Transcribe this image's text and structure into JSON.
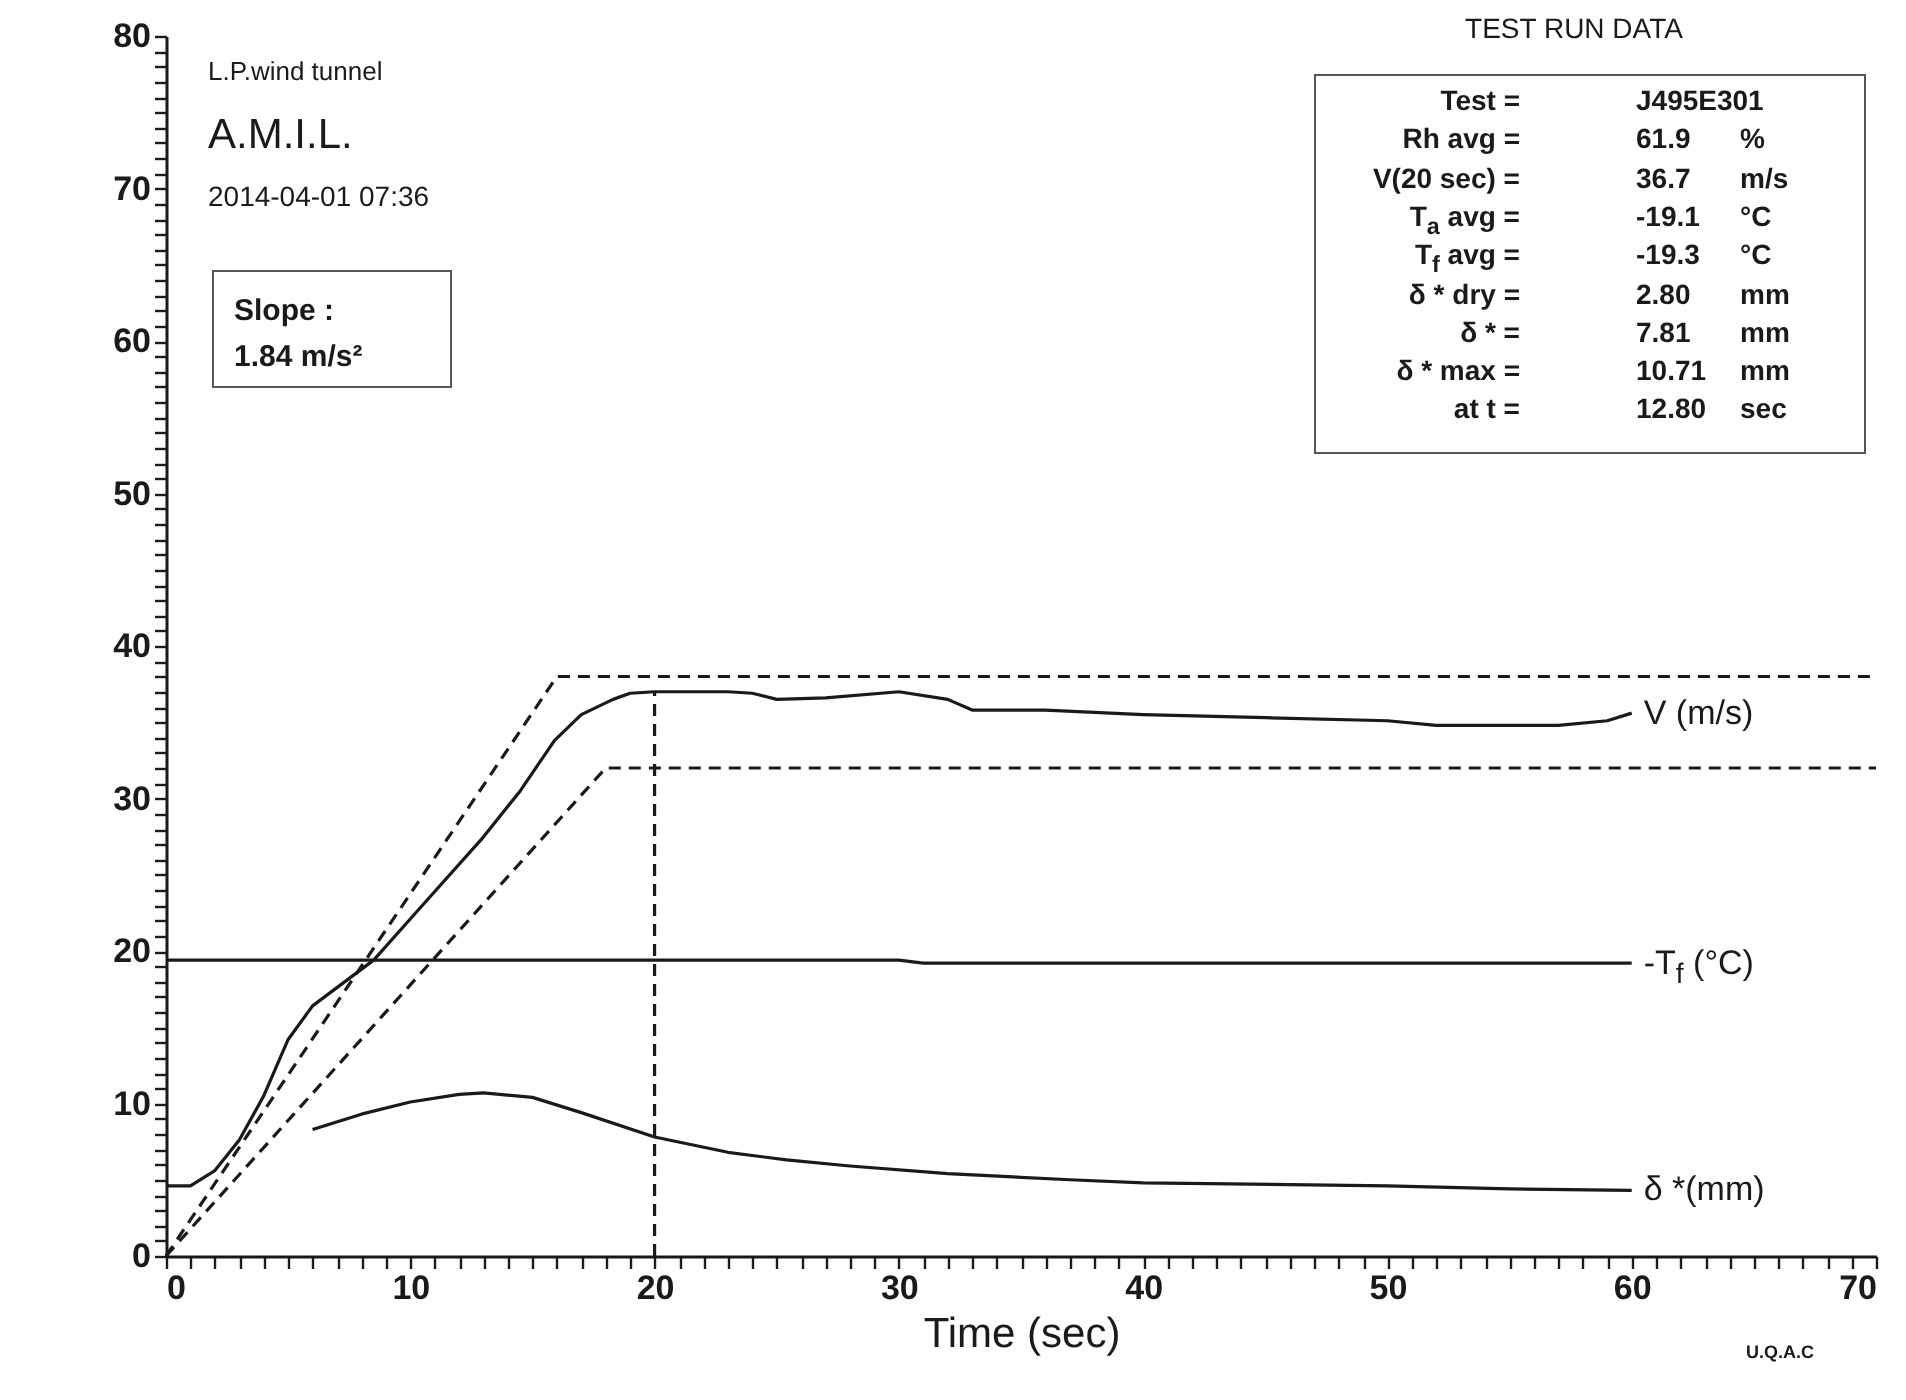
{
  "chart_data": {
    "type": "line",
    "xlabel": "Time (sec)",
    "xlim": [
      0,
      70
    ],
    "ylim": [
      0,
      80
    ],
    "xticks": [
      0,
      {
        "value": 1,
        "label": null
      },
      {
        "value": 2,
        "label": null
      },
      {
        "value": 3,
        "label": null
      },
      {
        "value": 4,
        "label": null
      },
      {
        "value": 5,
        "label": null
      },
      {
        "value": 6,
        "label": null
      },
      {
        "value": 7,
        "label": null
      },
      {
        "value": 8,
        "label": null
      },
      {
        "value": 9,
        "label": null
      },
      10,
      {
        "value": 11,
        "label": null
      },
      {
        "value": 12,
        "label": null
      },
      {
        "value": 13,
        "label": null
      },
      {
        "value": 14,
        "label": null
      },
      {
        "value": 15,
        "label": null
      },
      {
        "value": 16,
        "label": null
      },
      {
        "value": 17,
        "label": null
      },
      {
        "value": 18,
        "label": null
      },
      {
        "value": 19,
        "label": null
      },
      20,
      {
        "value": 21,
        "label": null
      },
      {
        "value": 22,
        "label": null
      },
      {
        "value": 23,
        "label": null
      },
      {
        "value": 24,
        "label": null
      },
      {
        "value": 25,
        "label": null
      },
      {
        "value": 26,
        "label": null
      },
      {
        "value": 27,
        "label": null
      },
      {
        "value": 28,
        "label": null
      },
      {
        "value": 29,
        "label": null
      },
      30,
      {
        "value": 31,
        "label": null
      },
      {
        "value": 32,
        "label": null
      },
      {
        "value": 33,
        "label": null
      },
      {
        "value": 34,
        "label": null
      },
      {
        "value": 35,
        "label": null
      },
      {
        "value": 36,
        "label": null
      },
      {
        "value": 37,
        "label": null
      },
      {
        "value": 38,
        "label": null
      },
      {
        "value": 39,
        "label": null
      },
      40,
      {
        "value": 41,
        "label": null
      },
      {
        "value": 42,
        "label": null
      },
      {
        "value": 43,
        "label": null
      },
      {
        "value": 44,
        "label": null
      },
      {
        "value": 45,
        "label": null
      },
      {
        "value": 46,
        "label": null
      },
      {
        "value": 47,
        "label": null
      },
      {
        "value": 48,
        "label": null
      },
      {
        "value": 49,
        "label": null
      },
      50,
      {
        "value": 51,
        "label": null
      },
      {
        "value": 52,
        "label": null
      },
      {
        "value": 53,
        "label": null
      },
      {
        "value": 54,
        "label": null
      },
      {
        "value": 55,
        "label": null
      },
      {
        "value": 56,
        "label": null
      },
      {
        "value": 57,
        "label": null
      },
      {
        "value": 58,
        "label": null
      },
      {
        "value": 59,
        "label": null
      },
      60,
      {
        "value": 61,
        "label": null
      },
      {
        "value": 62,
        "label": null
      },
      {
        "value": 63,
        "label": null
      },
      {
        "value": 64,
        "label": null
      },
      {
        "value": 65,
        "label": null
      },
      {
        "value": 66,
        "label": null
      },
      {
        "value": 67,
        "label": null
      },
      {
        "value": 68,
        "label": null
      },
      {
        "value": 69,
        "label": null
      },
      70
    ],
    "yticks": [
      0,
      {
        "value": 1,
        "label": null
      },
      {
        "value": 2,
        "label": null
      },
      {
        "value": 3,
        "label": null
      },
      {
        "value": 4,
        "label": null
      },
      {
        "value": 5,
        "label": null
      },
      {
        "value": 6,
        "label": null
      },
      {
        "value": 7,
        "label": null
      },
      {
        "value": 8,
        "label": null
      },
      {
        "value": 9,
        "label": null
      },
      10,
      {
        "value": 11,
        "label": null
      },
      {
        "value": 12,
        "label": null
      },
      {
        "value": 13,
        "label": null
      },
      {
        "value": 14,
        "label": null
      },
      {
        "value": 15,
        "label": null
      },
      {
        "value": 16,
        "label": null
      },
      {
        "value": 17,
        "label": null
      },
      {
        "value": 18,
        "label": null
      },
      {
        "value": 19,
        "label": null
      },
      20,
      {
        "value": 21,
        "label": null
      },
      {
        "value": 22,
        "label": null
      },
      {
        "value": 23,
        "label": null
      },
      {
        "value": 24,
        "label": null
      },
      {
        "value": 25,
        "label": null
      },
      {
        "value": 26,
        "label": null
      },
      {
        "value": 27,
        "label": null
      },
      {
        "value": 28,
        "label": null
      },
      {
        "value": 29,
        "label": null
      },
      30,
      {
        "value": 31,
        "label": null
      },
      {
        "value": 32,
        "label": null
      },
      {
        "value": 33,
        "label": null
      },
      {
        "value": 34,
        "label": null
      },
      {
        "value": 35,
        "label": null
      },
      {
        "value": 36,
        "label": null
      },
      {
        "value": 37,
        "label": null
      },
      {
        "value": 38,
        "label": null
      },
      {
        "value": 39,
        "label": null
      },
      40,
      {
        "value": 41,
        "label": null
      },
      {
        "value": 42,
        "label": null
      },
      {
        "value": 43,
        "label": null
      },
      {
        "value": 44,
        "label": null
      },
      {
        "value": 45,
        "label": null
      },
      {
        "value": 46,
        "label": null
      },
      {
        "value": 47,
        "label": null
      },
      {
        "value": 48,
        "label": null
      },
      {
        "value": 49,
        "label": null
      },
      50,
      {
        "value": 51,
        "label": null
      },
      {
        "value": 52,
        "label": null
      },
      {
        "value": 53,
        "label": null
      },
      {
        "value": 54,
        "label": null
      },
      {
        "value": 55,
        "label": null
      },
      {
        "value": 56,
        "label": null
      },
      {
        "value": 57,
        "label": null
      },
      {
        "value": 58,
        "label": null
      },
      {
        "value": 59,
        "label": null
      },
      60,
      {
        "value": 61,
        "label": null
      },
      {
        "value": 62,
        "label": null
      },
      {
        "value": 63,
        "label": null
      },
      {
        "value": 64,
        "label": null
      },
      {
        "value": 65,
        "label": null
      },
      {
        "value": 66,
        "label": null
      },
      {
        "value": 67,
        "label": null
      },
      {
        "value": 68,
        "label": null
      },
      {
        "value": 69,
        "label": null
      },
      70,
      {
        "value": 71,
        "label": null
      },
      {
        "value": 72,
        "label": null
      },
      {
        "value": 73,
        "label": null
      },
      {
        "value": 74,
        "label": null
      },
      {
        "value": 75,
        "label": null
      },
      {
        "value": 76,
        "label": null
      },
      {
        "value": 77,
        "label": null
      },
      {
        "value": 78,
        "label": null
      },
      {
        "value": 79,
        "label": null
      },
      80
    ],
    "series": [
      {
        "name": "V (m/s)",
        "color": "#1a1a1a",
        "line_style": "solid",
        "x": [
          0,
          1,
          2,
          3,
          4,
          5,
          6,
          8.5,
          10.5,
          12.9,
          14.5,
          15.9,
          17,
          18.3,
          19,
          20,
          23,
          24,
          25,
          27,
          30,
          32,
          33,
          36,
          40,
          45,
          50,
          52,
          57,
          59,
          60
        ],
        "values": [
          4.6,
          4.6,
          5.6,
          7.6,
          10.5,
          14.2,
          16.4,
          19.4,
          23,
          27.3,
          30.5,
          33.8,
          35.5,
          36.5,
          36.9,
          37,
          37,
          36.9,
          36.5,
          36.6,
          37,
          36.5,
          35.8,
          35.8,
          35.5,
          35.3,
          35.1,
          34.8,
          34.8,
          35.1,
          35.6
        ]
      },
      {
        "name": "-T$_{f}$ (°C)",
        "color": "#1a1a1a",
        "line_style": "solid",
        "x": [
          0,
          30,
          31,
          60
        ],
        "values": [
          19.4,
          19.4,
          19.2,
          19.2
        ]
      },
      {
        "name": "δ *(mm)",
        "color": "#1a1a1a",
        "line_style": "solid",
        "x": [
          6,
          8,
          10,
          12,
          13,
          15,
          17,
          20,
          23,
          25.4,
          28,
          32,
          37,
          40,
          50,
          55,
          60
        ],
        "values": [
          8.3,
          9.3,
          10.1,
          10.6,
          10.7,
          10.4,
          9.4,
          7.8,
          6.8,
          6.3,
          5.9,
          5.4,
          5,
          4.8,
          4.6,
          4.4,
          4.3
        ]
      },
      {
        "color": "#1a1a1a",
        "line_style": "dashed",
        "x": [
          0,
          16,
          70
        ],
        "values": [
          0,
          38,
          38
        ]
      },
      {
        "color": "#1a1a1a",
        "line_style": "dashed",
        "x": [
          0,
          18,
          70
        ],
        "values": [
          0,
          32,
          32
        ]
      },
      {
        "color": "#1a1a1a",
        "line_style": "dashed",
        "x": [
          20,
          20
        ],
        "values": [
          0,
          37
        ]
      }
    ],
    "annotations": [
      "L.P.wind tunnel",
      "A.M.I.L.",
      "2014-04-01 07:36",
      "Slope :",
      "1.84 m/s²",
      "TEST RUN DATA",
      "Test =",
      "J495E301",
      "Rh avg =",
      "61.9",
      "%",
      "V(20 sec) =",
      "36.7",
      "m/s",
      "T$_{a}$ avg =",
      "-19.1",
      "°C",
      "T$_{f}$ avg =",
      "-19.3",
      "°C",
      "δ * dry =",
      "2.80",
      "mm",
      "δ *       =",
      "7.81",
      "mm",
      "δ * max =",
      "10.71",
      "mm",
      "at t =",
      "12.80",
      "sec",
      "U.Q.A.C"
    ]
  }
}
